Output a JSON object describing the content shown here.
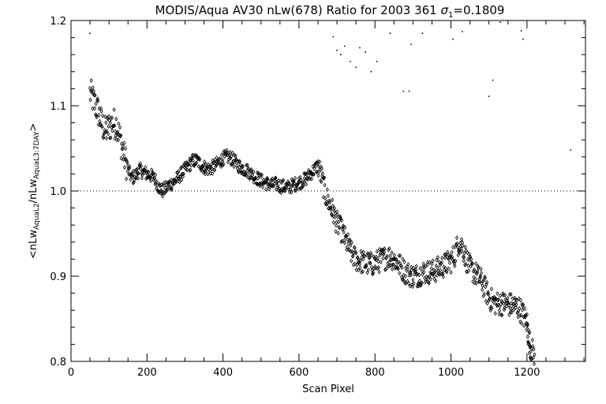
{
  "chart_data": {
    "type": "scatter",
    "title_main": "MODIS/Aqua AV30 nLw(678) Ratio for 2003 361 ",
    "title_sigma_symbol": "σ",
    "title_sigma_sub": "1",
    "title_sigma_value": "=0.1809",
    "xlabel": "Scan Pixel",
    "ylabel": {
      "part1": "<nLw",
      "sub1": "AquaL2",
      "part2": "/nLw",
      "sub2": "AquaL3:7DAY",
      "part3": ">"
    },
    "xlim": [
      0,
      1354
    ],
    "ylim": [
      0.8,
      1.2
    ],
    "xticks": [
      0,
      200,
      400,
      600,
      800,
      1000,
      1200
    ],
    "xtick_labels": [
      "0",
      "200",
      "400",
      "600",
      "800",
      "1000",
      "1200"
    ],
    "yticks": [
      0.8,
      0.9,
      1.0,
      1.1,
      1.2
    ],
    "ytick_labels": [
      "0.8",
      "0.9",
      "1.0",
      "1.1",
      "1.2"
    ],
    "reference_line": {
      "y": 1.0,
      "style": "dotted"
    },
    "marker": "diamond",
    "grid": false,
    "trend": [
      [
        50,
        1.115
      ],
      [
        60,
        1.105
      ],
      [
        70,
        1.095
      ],
      [
        80,
        1.08
      ],
      [
        90,
        1.07
      ],
      [
        100,
        1.075
      ],
      [
        110,
        1.08
      ],
      [
        120,
        1.078
      ],
      [
        130,
        1.06
      ],
      [
        140,
        1.04
      ],
      [
        150,
        1.025
      ],
      [
        160,
        1.015
      ],
      [
        170,
        1.018
      ],
      [
        180,
        1.025
      ],
      [
        190,
        1.022
      ],
      [
        200,
        1.02
      ],
      [
        210,
        1.018
      ],
      [
        220,
        1.015
      ],
      [
        230,
        1.005
      ],
      [
        240,
        1.0
      ],
      [
        250,
        1.003
      ],
      [
        260,
        1.008
      ],
      [
        270,
        1.01
      ],
      [
        280,
        1.015
      ],
      [
        290,
        1.02
      ],
      [
        300,
        1.025
      ],
      [
        310,
        1.03
      ],
      [
        320,
        1.035
      ],
      [
        330,
        1.036
      ],
      [
        340,
        1.032
      ],
      [
        350,
        1.028
      ],
      [
        360,
        1.026
      ],
      [
        370,
        1.027
      ],
      [
        380,
        1.03
      ],
      [
        390,
        1.034
      ],
      [
        400,
        1.038
      ],
      [
        410,
        1.04
      ],
      [
        420,
        1.039
      ],
      [
        430,
        1.035
      ],
      [
        440,
        1.03
      ],
      [
        450,
        1.027
      ],
      [
        460,
        1.025
      ],
      [
        470,
        1.022
      ],
      [
        480,
        1.018
      ],
      [
        490,
        1.015
      ],
      [
        500,
        1.012
      ],
      [
        510,
        1.01
      ],
      [
        520,
        1.008
      ],
      [
        530,
        1.007
      ],
      [
        540,
        1.008
      ],
      [
        550,
        1.006
      ],
      [
        560,
        1.005
      ],
      [
        570,
        1.004
      ],
      [
        580,
        1.006
      ],
      [
        590,
        1.008
      ],
      [
        600,
        1.01
      ],
      [
        610,
        1.012
      ],
      [
        620,
        1.015
      ],
      [
        630,
        1.02
      ],
      [
        640,
        1.025
      ],
      [
        650,
        1.03
      ],
      [
        660,
        1.015
      ],
      [
        670,
        0.995
      ],
      [
        680,
        0.985
      ],
      [
        690,
        0.975
      ],
      [
        700,
        0.962
      ],
      [
        710,
        0.955
      ],
      [
        720,
        0.945
      ],
      [
        730,
        0.935
      ],
      [
        740,
        0.925
      ],
      [
        750,
        0.92
      ],
      [
        760,
        0.918
      ],
      [
        770,
        0.916
      ],
      [
        780,
        0.915
      ],
      [
        790,
        0.914
      ],
      [
        800,
        0.915
      ],
      [
        810,
        0.918
      ],
      [
        820,
        0.92
      ],
      [
        830,
        0.922
      ],
      [
        840,
        0.923
      ],
      [
        850,
        0.92
      ],
      [
        860,
        0.915
      ],
      [
        870,
        0.91
      ],
      [
        880,
        0.905
      ],
      [
        890,
        0.902
      ],
      [
        900,
        0.9
      ],
      [
        910,
        0.901
      ],
      [
        920,
        0.903
      ],
      [
        930,
        0.905
      ],
      [
        940,
        0.905
      ],
      [
        950,
        0.905
      ],
      [
        960,
        0.907
      ],
      [
        970,
        0.91
      ],
      [
        980,
        0.912
      ],
      [
        990,
        0.915
      ],
      [
        1000,
        0.918
      ],
      [
        1010,
        0.925
      ],
      [
        1020,
        0.94
      ],
      [
        1030,
        0.935
      ],
      [
        1040,
        0.92
      ],
      [
        1050,
        0.91
      ],
      [
        1060,
        0.905
      ],
      [
        1070,
        0.9
      ],
      [
        1080,
        0.895
      ],
      [
        1090,
        0.885
      ],
      [
        1100,
        0.875
      ],
      [
        1110,
        0.87
      ],
      [
        1120,
        0.868
      ],
      [
        1130,
        0.868
      ],
      [
        1140,
        0.868
      ],
      [
        1150,
        0.867
      ],
      [
        1160,
        0.866
      ],
      [
        1170,
        0.865
      ],
      [
        1180,
        0.862
      ],
      [
        1190,
        0.855
      ],
      [
        1200,
        0.845
      ],
      [
        1205,
        0.825
      ],
      [
        1210,
        0.815
      ],
      [
        1220,
        0.808
      ]
    ],
    "outliers": [
      [
        50,
        1.185
      ],
      [
        690,
        1.181
      ],
      [
        700,
        1.165
      ],
      [
        710,
        1.16
      ],
      [
        720,
        1.17
      ],
      [
        735,
        1.152
      ],
      [
        750,
        1.145
      ],
      [
        760,
        1.168
      ],
      [
        775,
        1.163
      ],
      [
        790,
        1.14
      ],
      [
        805,
        1.152
      ],
      [
        840,
        1.185
      ],
      [
        875,
        1.117
      ],
      [
        890,
        1.117
      ],
      [
        895,
        1.172
      ],
      [
        925,
        1.185
      ],
      [
        1005,
        1.178
      ],
      [
        1030,
        1.187
      ],
      [
        1100,
        1.111
      ],
      [
        1110,
        1.13
      ],
      [
        1130,
        1.198
      ],
      [
        1190,
        1.178
      ],
      [
        1315,
        1.048
      ],
      [
        1185,
        1.188
      ]
    ]
  }
}
